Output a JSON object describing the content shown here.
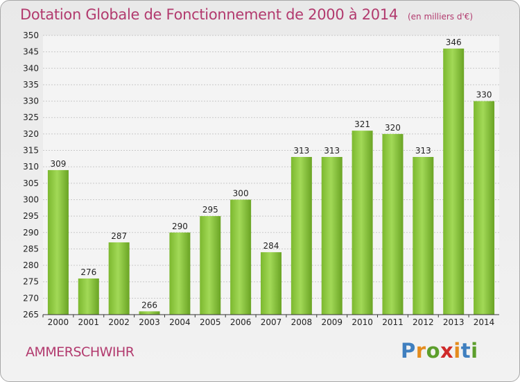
{
  "title": "Dotation Globale de Fonctionnement de 2000 à 2014",
  "subtitle": "(en milliers d'€)",
  "commune": "AMMERSCHWIHR",
  "logo": {
    "text": "Proxiti",
    "colors": [
      "#3f7fbf",
      "#e48c1e",
      "#5c9e2c",
      "#cf2a2a",
      "#e48c1e",
      "#3f7fbf",
      "#5c9e2c"
    ]
  },
  "chart_data": {
    "type": "bar",
    "categories": [
      "2000",
      "2001",
      "2002",
      "2003",
      "2004",
      "2005",
      "2006",
      "2007",
      "2008",
      "2009",
      "2010",
      "2011",
      "2012",
      "2013",
      "2014"
    ],
    "values": [
      309,
      276,
      287,
      266,
      290,
      295,
      300,
      284,
      313,
      313,
      321,
      320,
      313,
      346,
      330
    ],
    "data_labels": [
      "309",
      "276",
      "287",
      "266",
      "290",
      "295",
      "300",
      "284",
      "313",
      "313",
      "321",
      "320",
      "313",
      "346",
      "330"
    ],
    "y_ticks": [
      "265",
      "270",
      "275",
      "280",
      "285",
      "290",
      "295",
      "300",
      "305",
      "310",
      "315",
      "320",
      "325",
      "330",
      "335",
      "340",
      "345",
      "350"
    ],
    "ylim": [
      265,
      350
    ],
    "grid": true,
    "bar_color": "#7cb82f",
    "bar_color_light": "#a2d957"
  }
}
